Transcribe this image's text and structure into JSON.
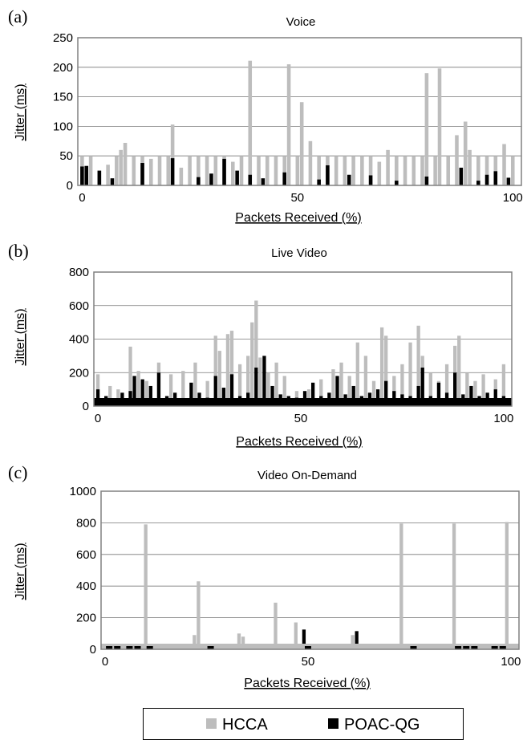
{
  "panels": [
    {
      "letter": "(a)",
      "title": "Voice",
      "ylabel": "Jitter (ms)",
      "xlabel": "Packets Received (%)",
      "yticks": [
        "0",
        "50",
        "100",
        "150",
        "200",
        "250"
      ],
      "xticks": [
        "0",
        "50",
        "100"
      ]
    },
    {
      "letter": "(b)",
      "title": "Live Video",
      "ylabel": "Jitter (ms)",
      "xlabel": "Packets Received (%)",
      "yticks": [
        "0",
        "200",
        "400",
        "600",
        "800"
      ],
      "xticks": [
        "0",
        "50",
        "100"
      ]
    },
    {
      "letter": "(c)",
      "title": "Video On-Demand",
      "ylabel": "Jitter (ms)",
      "xlabel": "Packets Received (%)",
      "yticks": [
        "0",
        "200",
        "400",
        "600",
        "800",
        "1000"
      ],
      "xticks": [
        "0",
        "50",
        "100"
      ]
    }
  ],
  "legend": [
    {
      "name": "HCCA",
      "color": "#bdbdbd"
    },
    {
      "name": "POAC-QG",
      "color": "#000000"
    }
  ],
  "colors": {
    "hcca": "#bdbdbd",
    "poac": "#000000",
    "grid": "#777777",
    "frame": "#808080"
  },
  "chart_data": [
    {
      "type": "bar",
      "title": "Voice",
      "xlabel": "Packets Received (%)",
      "ylabel": "Jitter (ms)",
      "xlim": [
        -1,
        102
      ],
      "ylim": [
        0,
        250
      ],
      "grid": true,
      "legend_position": "bottom",
      "series": [
        {
          "name": "HCCA",
          "x": [
            0,
            2,
            4,
            6,
            8,
            9,
            10,
            12,
            14,
            16,
            18,
            20,
            21,
            23,
            25,
            27,
            29,
            31,
            33,
            35,
            37,
            39,
            41,
            43,
            45,
            47,
            48,
            50,
            51,
            53,
            55,
            57,
            59,
            61,
            63,
            65,
            67,
            69,
            71,
            73,
            75,
            77,
            79,
            80,
            82,
            83,
            85,
            87,
            89,
            90,
            92,
            94,
            96,
            98,
            100
          ],
          "values": [
            50,
            50,
            25,
            35,
            50,
            60,
            72,
            50,
            50,
            45,
            50,
            50,
            103,
            30,
            50,
            50,
            50,
            50,
            50,
            40,
            50,
            211,
            50,
            50,
            50,
            50,
            205,
            50,
            141,
            75,
            50,
            50,
            50,
            50,
            50,
            50,
            50,
            40,
            60,
            50,
            50,
            50,
            50,
            190,
            50,
            198,
            50,
            85,
            108,
            60,
            50,
            50,
            50,
            70,
            50
          ]
        },
        {
          "name": "POAC-QG",
          "x": [
            0,
            1,
            4,
            7,
            14,
            21,
            27,
            30,
            33,
            36,
            39,
            42,
            47,
            55,
            57,
            62,
            67,
            73,
            80,
            88,
            92,
            94,
            96,
            99
          ],
          "values": [
            32,
            33,
            25,
            12,
            38,
            46,
            14,
            20,
            45,
            25,
            18,
            12,
            22,
            10,
            34,
            18,
            17,
            8,
            15,
            30,
            8,
            18,
            24,
            13
          ]
        }
      ]
    },
    {
      "type": "bar",
      "title": "Live Video",
      "xlabel": "Packets Received (%)",
      "ylabel": "Jitter (ms)",
      "xlim": [
        -1,
        102
      ],
      "ylim": [
        0,
        800
      ],
      "grid": true,
      "legend_position": "bottom",
      "series": [
        {
          "name": "HCCA",
          "x": [
            0,
            3,
            5,
            8,
            10,
            12,
            15,
            18,
            21,
            24,
            27,
            29,
            30,
            32,
            33,
            35,
            37,
            38,
            39,
            40,
            42,
            44,
            46,
            49,
            52,
            55,
            58,
            60,
            62,
            64,
            66,
            68,
            70,
            71,
            73,
            75,
            77,
            79,
            80,
            82,
            84,
            86,
            88,
            89,
            91,
            93,
            95,
            98,
            100
          ],
          "values": [
            190,
            120,
            100,
            355,
            210,
            150,
            260,
            190,
            210,
            260,
            150,
            420,
            330,
            430,
            450,
            250,
            300,
            500,
            630,
            290,
            200,
            260,
            180,
            90,
            100,
            160,
            220,
            260,
            180,
            380,
            300,
            150,
            470,
            420,
            180,
            250,
            380,
            480,
            300,
            200,
            150,
            250,
            360,
            420,
            200,
            150,
            190,
            160,
            250
          ]
        },
        {
          "name": "POAC-QG",
          "x": [
            0,
            2,
            4,
            6,
            8,
            9,
            11,
            13,
            15,
            17,
            19,
            21,
            23,
            25,
            27,
            29,
            31,
            33,
            35,
            37,
            39,
            41,
            43,
            45,
            47,
            49,
            51,
            53,
            55,
            57,
            59,
            61,
            63,
            65,
            67,
            69,
            71,
            73,
            75,
            77,
            79,
            80,
            82,
            84,
            86,
            88,
            90,
            92,
            94,
            96,
            98,
            100
          ],
          "values": [
            100,
            60,
            40,
            80,
            90,
            180,
            160,
            120,
            200,
            60,
            80,
            40,
            140,
            80,
            50,
            180,
            110,
            190,
            60,
            80,
            230,
            300,
            120,
            70,
            60,
            50,
            90,
            140,
            60,
            80,
            180,
            70,
            120,
            60,
            80,
            100,
            150,
            90,
            70,
            60,
            120,
            230,
            60,
            140,
            80,
            200,
            70,
            120,
            60,
            80,
            100,
            60
          ]
        }
      ]
    },
    {
      "type": "bar",
      "title": "Video On-Demand",
      "xlabel": "Packets Received (%)",
      "ylabel": "Jitter (ms)",
      "xlim": [
        -1,
        102
      ],
      "ylim": [
        0,
        1000
      ],
      "grid": true,
      "legend_position": "bottom",
      "series": [
        {
          "name": "HCCA",
          "x": [
            10,
            23,
            22,
            33,
            34,
            42,
            47,
            61,
            73,
            86,
            99
          ],
          "values": [
            790,
            430,
            90,
            100,
            80,
            295,
            170,
            90,
            795,
            795,
            805
          ]
        },
        {
          "name": "POAC-QG",
          "x": [
            49,
            62
          ],
          "values": [
            125,
            115
          ]
        }
      ]
    }
  ]
}
